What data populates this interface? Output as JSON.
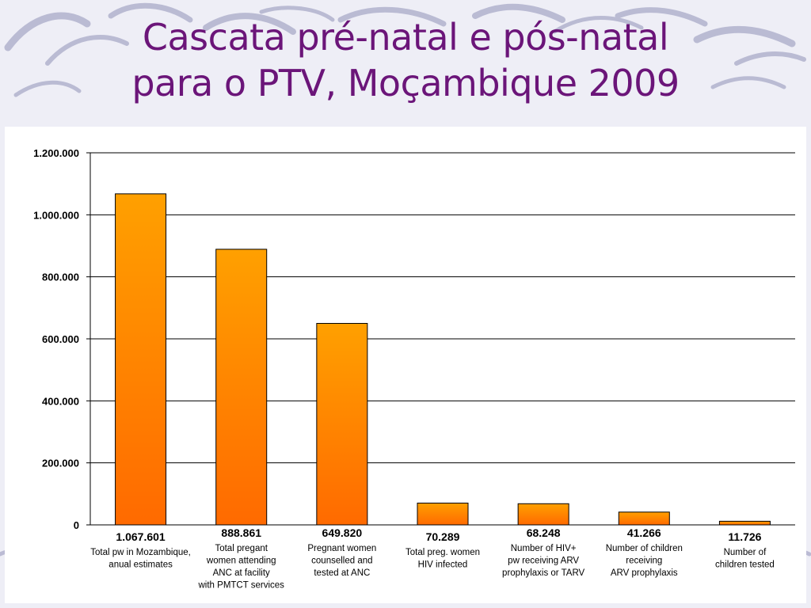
{
  "slide": {
    "title_line1": "Cascata pré-natal e pós-natal",
    "title_line2": "para o PTV, Moçambique 2009"
  },
  "colors": {
    "title": "#6b1579",
    "bar_top": "#ffa000",
    "bar_bottom": "#ff6a00",
    "background": "#eeeef6",
    "swirl": "#a9aac8"
  },
  "chart_data": {
    "type": "bar",
    "ylim": [
      0,
      1200000
    ],
    "yticks": [
      0,
      200000,
      400000,
      600000,
      800000,
      1000000,
      1200000
    ],
    "ytick_labels": [
      "0",
      "200.000",
      "400.000",
      "600.000",
      "800.000",
      "1.000.000",
      "1.200.000"
    ],
    "grid": true,
    "legend": "none",
    "values": [
      1067601,
      888861,
      649820,
      70289,
      68248,
      41266,
      11726
    ],
    "value_labels": [
      "1.067.601",
      "888.861",
      "649.820",
      "70.289",
      "68.248",
      "41.266",
      "11.726"
    ],
    "categories": [
      [
        "Total pw in Mozambique,",
        "anual estimates"
      ],
      [
        "Total pregant",
        "women attending",
        "ANC at facility",
        "with PMTCT services"
      ],
      [
        "Pregnant women",
        "counselled and",
        "tested at ANC"
      ],
      [
        "Total preg. women",
        "HIV infected"
      ],
      [
        "Number of HIV+",
        "pw receiving ARV",
        "prophylaxis or TARV"
      ],
      [
        "Number of children",
        "receiving",
        "ARV prophylaxis"
      ],
      [
        "Number of",
        "children tested"
      ]
    ]
  }
}
